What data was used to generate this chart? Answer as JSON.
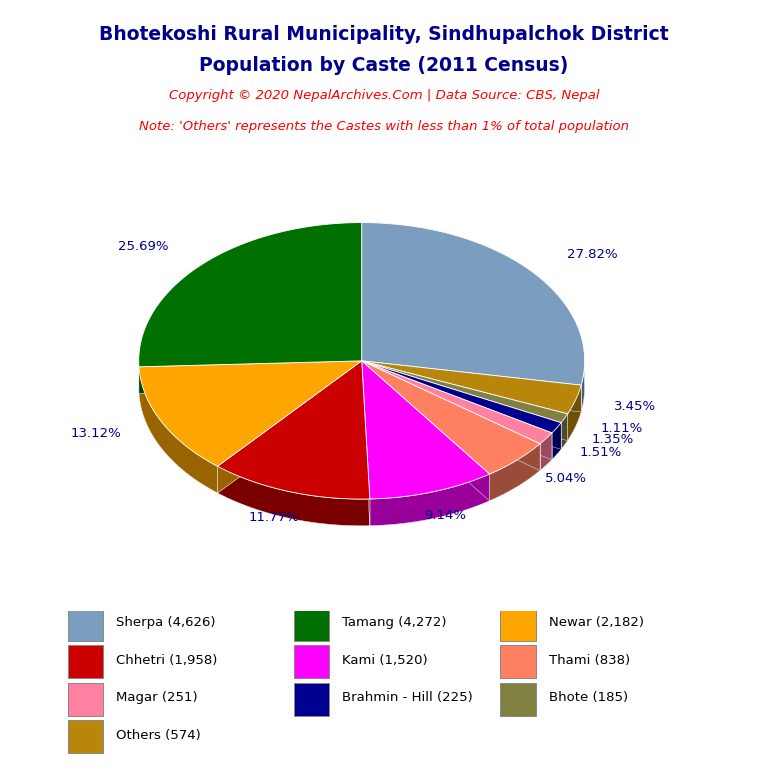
{
  "title_line1": "Bhotekoshi Rural Municipality, Sindhupalchok District",
  "title_line2": "Population by Caste (2011 Census)",
  "copyright_text": "Copyright © 2020 NepalArchives.Com | Data Source: CBS, Nepal",
  "note_text": "Note: 'Others' represents the Castes with less than 1% of total population",
  "ordered_slices": [
    {
      "label": "Sherpa",
      "value": 4626,
      "pct": 27.82,
      "color": "#7B9DC0"
    },
    {
      "label": "Others",
      "value": 574,
      "pct": 3.45,
      "color": "#B8860B"
    },
    {
      "label": "Bhote",
      "value": 185,
      "pct": 1.11,
      "color": "#808040"
    },
    {
      "label": "Brahmin - Hill",
      "value": 225,
      "pct": 1.35,
      "color": "#000090"
    },
    {
      "label": "Magar",
      "value": 251,
      "pct": 1.51,
      "color": "#FF80A0"
    },
    {
      "label": "Thami",
      "value": 838,
      "pct": 5.04,
      "color": "#FF8060"
    },
    {
      "label": "Kami",
      "value": 1520,
      "pct": 9.14,
      "color": "#FF00FF"
    },
    {
      "label": "Chhetri",
      "value": 1958,
      "pct": 11.77,
      "color": "#CC0000"
    },
    {
      "label": "Newar",
      "value": 2182,
      "pct": 13.12,
      "color": "#FFA500"
    },
    {
      "label": "Tamang",
      "value": 4272,
      "pct": 25.69,
      "color": "#007000"
    }
  ],
  "legend_entries": [
    {
      "label": "Sherpa (4,626)",
      "color": "#7B9DC0"
    },
    {
      "label": "Tamang (4,272)",
      "color": "#007000"
    },
    {
      "label": "Newar (2,182)",
      "color": "#FFA500"
    },
    {
      "label": "Chhetri (1,958)",
      "color": "#CC0000"
    },
    {
      "label": "Kami (1,520)",
      "color": "#FF00FF"
    },
    {
      "label": "Thami (838)",
      "color": "#FF8060"
    },
    {
      "label": "Magar (251)",
      "color": "#FF80A0"
    },
    {
      "label": "Brahmin - Hill (225)",
      "color": "#000090"
    },
    {
      "label": "Bhote (185)",
      "color": "#808040"
    },
    {
      "label": "Others (574)",
      "color": "#B8860B"
    }
  ],
  "title_color": "#00008B",
  "copyright_color": "#FF0000",
  "note_color": "#FF0000",
  "label_color": "#00008B",
  "background_color": "#FFFFFF"
}
